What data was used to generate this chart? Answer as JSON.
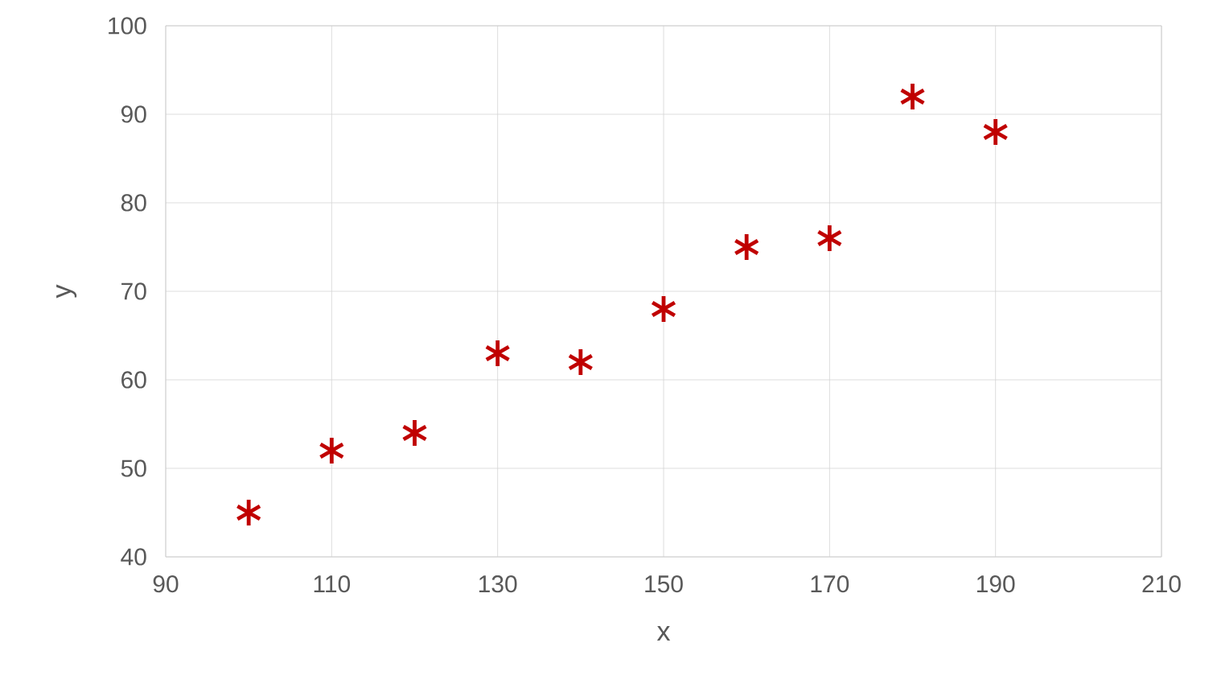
{
  "chart_data": {
    "type": "scatter",
    "xlabel": "x",
    "ylabel": "y",
    "x": [
      100,
      110,
      120,
      130,
      140,
      150,
      160,
      170,
      180,
      190
    ],
    "series": [
      {
        "color": "#c00000",
        "values": [
          45,
          52,
          54,
          63,
          62,
          68,
          75,
          76,
          92,
          88
        ]
      }
    ],
    "xlim": [
      90,
      210
    ],
    "xticks": [
      90,
      110,
      130,
      150,
      170,
      190,
      210
    ],
    "ylim": [
      40,
      100
    ],
    "yticks": [
      40,
      50,
      60,
      70,
      80,
      90,
      100
    ],
    "grid": true,
    "marker": "cross"
  }
}
